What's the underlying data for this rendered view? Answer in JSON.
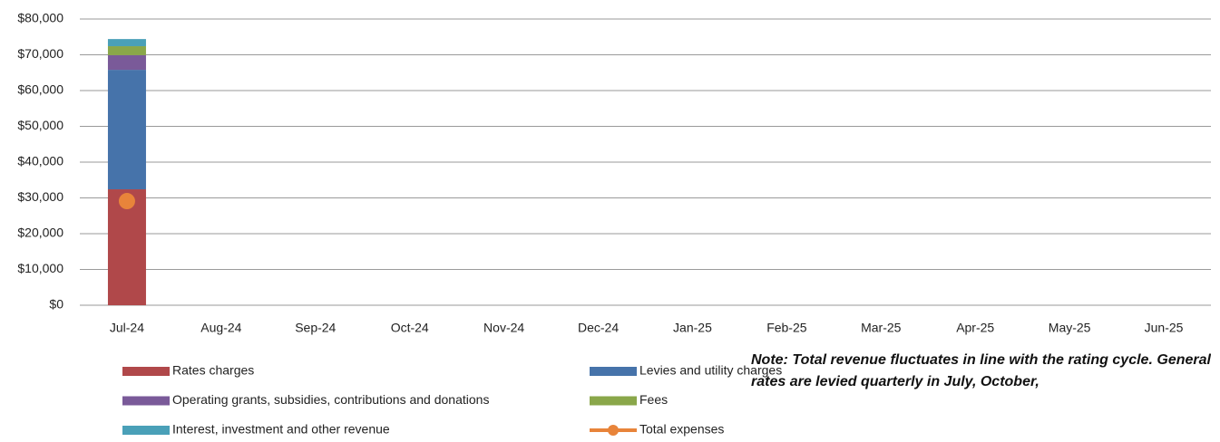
{
  "chart_data": {
    "type": "bar",
    "stacked": true,
    "categories": [
      "Jul-24",
      "Aug-24",
      "Sep-24",
      "Oct-24",
      "Nov-24",
      "Dec-24",
      "Jan-25",
      "Feb-25",
      "Mar-25",
      "Apr-25",
      "May-25",
      "Jun-25"
    ],
    "series": [
      {
        "name": "Rates charges",
        "color": "#b0484a",
        "values": [
          32400,
          null,
          null,
          null,
          null,
          null,
          null,
          null,
          null,
          null,
          null,
          null
        ]
      },
      {
        "name": "Levies and utility charges",
        "color": "#4673aa",
        "values": [
          33400,
          null,
          null,
          null,
          null,
          null,
          null,
          null,
          null,
          null,
          null,
          null
        ]
      },
      {
        "name": "Operating grants, subsidies, contributions and donations",
        "color": "#7a5a99",
        "values": [
          4100,
          null,
          null,
          null,
          null,
          null,
          null,
          null,
          null,
          null,
          null,
          null
        ]
      },
      {
        "name": "Fees",
        "color": "#8aa74a",
        "values": [
          2500,
          null,
          null,
          null,
          null,
          null,
          null,
          null,
          null,
          null,
          null,
          null
        ]
      },
      {
        "name": "Interest, investment and other revenue",
        "color": "#4aa0b8",
        "values": [
          2000,
          null,
          null,
          null,
          null,
          null,
          null,
          null,
          null,
          null,
          null,
          null
        ]
      },
      {
        "name": "Total expenses",
        "type": "line",
        "color": "#e8843a",
        "values": [
          29100,
          null,
          null,
          null,
          null,
          null,
          null,
          null,
          null,
          null,
          null,
          null
        ]
      }
    ],
    "ylim": [
      0,
      80000
    ],
    "yticks": [
      {
        "value": 0,
        "label": "$0"
      },
      {
        "value": 10000,
        "label": "$10,000"
      },
      {
        "value": 20000,
        "label": "$20,000"
      },
      {
        "value": 30000,
        "label": "$30,000"
      },
      {
        "value": 40000,
        "label": "$40,000"
      },
      {
        "value": 50000,
        "label": "$50,000"
      },
      {
        "value": 60000,
        "label": "$60,000"
      },
      {
        "value": 70000,
        "label": "$70,000"
      },
      {
        "value": 80000,
        "label": "$80,000"
      }
    ],
    "grid": true,
    "legend": "bottom",
    "note": "Note: Total revenue fluctuates in line with the rating cycle. General rates are levied quarterly in July, October,"
  }
}
